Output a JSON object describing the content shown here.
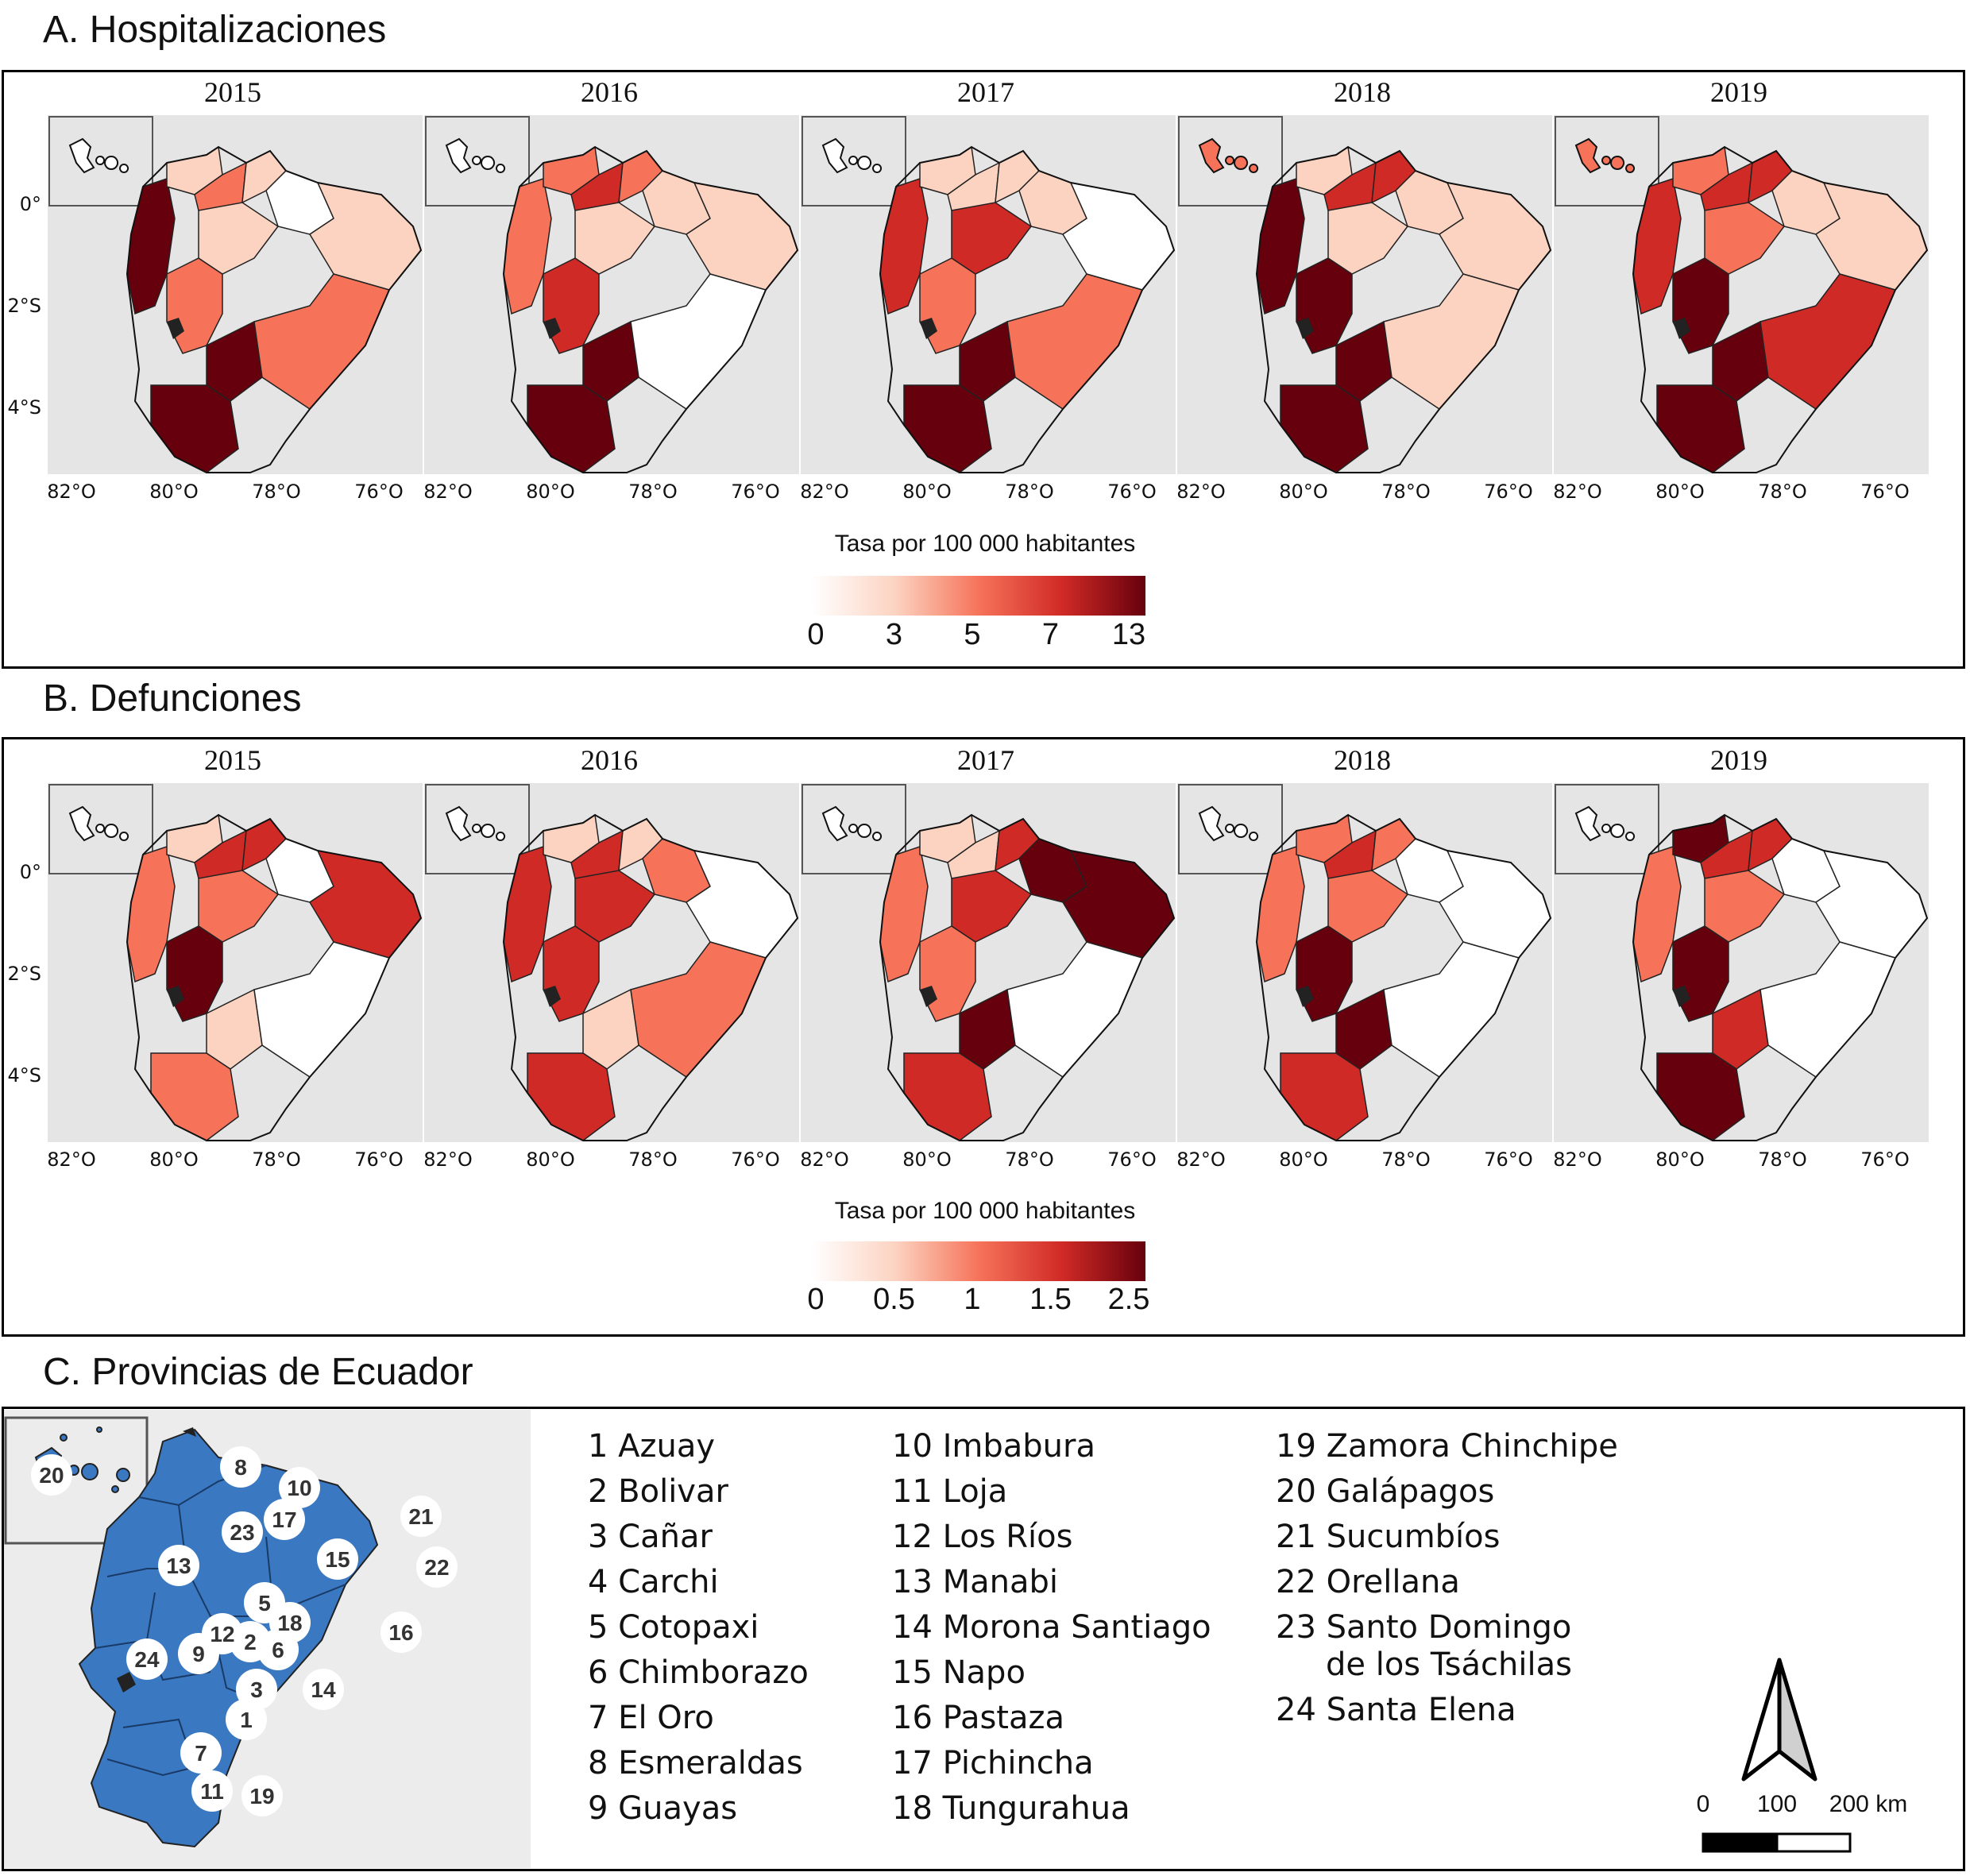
{
  "sections": {
    "hosp_title": "A. Hospitalizaciones",
    "def_title": "B. Defunciones",
    "prov_title": "C. Provincias de Ecuador"
  },
  "years": [
    "2015",
    "2016",
    "2017",
    "2018",
    "2019"
  ],
  "lat_ticks": [
    "0°",
    "2°S",
    "4°S"
  ],
  "lon_ticks": [
    "82°O",
    "80°O",
    "78°O",
    "76°O"
  ],
  "legend_hosp": {
    "title": "Tasa por 100 000 habitantes",
    "labels": [
      "0",
      "3",
      "5",
      "7",
      "13"
    ]
  },
  "legend_def": {
    "title": "Tasa por 100 000 habitantes",
    "labels": [
      "0",
      "0.5",
      "1",
      "1.5",
      "2.5"
    ]
  },
  "colors": {
    "scale": [
      "#ffffff",
      "#fcd3c1",
      "#f6735a",
      "#d02a26",
      "#67000d"
    ],
    "ocean_panel": "#e5e5e5",
    "province_fill": "#3a78c2",
    "province_panel": "#ececec"
  },
  "provinces": [
    "1 Azuay",
    "2 Bolivar",
    "3 Cañar",
    "4 Carchi",
    "5 Cotopaxi",
    "6 Chimborazo",
    "7 El Oro",
    "8 Esmeraldas",
    "9 Guayas",
    "10 Imbabura",
    "11 Loja",
    "12 Los Ríos",
    "13 Manabi",
    "14 Morona Santiago",
    "15 Napo",
    "16 Pastaza",
    "17 Pichincha",
    "18 Tungurahua",
    "19 Zamora Chinchipe",
    "20 Galápagos",
    "21 Sucumbíos",
    "22 Orellana",
    "23 Santo Domingo",
    "de los Tsáchilas",
    "24 Santa Elena"
  ],
  "province_numbers": [
    "1",
    "2",
    "3",
    "5",
    "6",
    "7",
    "8",
    "9",
    "10",
    "11",
    "12",
    "13",
    "14",
    "15",
    "16",
    "17",
    "18",
    "19",
    "20",
    "21",
    "22",
    "23",
    "24"
  ],
  "scale_bar": {
    "labels": [
      "0",
      "100",
      "200 km"
    ]
  },
  "map_fills": {
    "hosp": [
      [
        "#67000d",
        "#fcd3c1",
        "#f6735a",
        "#fcd3c1",
        "#ffffff",
        "#fcd3c1",
        "#f6735a",
        "#67000d",
        "#f6735a",
        "#fcd3c1",
        "#67000d"
      ],
      [
        "#f6735a",
        "#f6735a",
        "#d02a26",
        "#f6735a",
        "#fcd3c1",
        "#fcd3c1",
        "#d02a26",
        "#67000d",
        "#ffffff",
        "#fcd3c1",
        "#67000d"
      ],
      [
        "#d02a26",
        "#fcd3c1",
        "#fcd3c1",
        "#fcd3c1",
        "#fcd3c1",
        "#ffffff",
        "#f6735a",
        "#67000d",
        "#f6735a",
        "#d02a26",
        "#67000d"
      ],
      [
        "#67000d",
        "#fcd3c1",
        "#d02a26",
        "#d02a26",
        "#fcd3c1",
        "#fcd3c1",
        "#67000d",
        "#67000d",
        "#fcd3c1",
        "#fcd3c1",
        "#67000d"
      ],
      [
        "#d02a26",
        "#f6735a",
        "#d02a26",
        "#d02a26",
        "#fcd3c1",
        "#fcd3c1",
        "#67000d",
        "#67000d",
        "#d02a26",
        "#f6735a",
        "#67000d"
      ]
    ],
    "def": [
      [
        "#f6735a",
        "#fcd3c1",
        "#d02a26",
        "#d02a26",
        "#ffffff",
        "#d02a26",
        "#67000d",
        "#fcd3c1",
        "#ffffff",
        "#f6735a",
        "#f6735a"
      ],
      [
        "#d02a26",
        "#fcd3c1",
        "#d02a26",
        "#fcd3c1",
        "#f6735a",
        "#ffffff",
        "#d02a26",
        "#fcd3c1",
        "#f6735a",
        "#d02a26",
        "#d02a26"
      ],
      [
        "#f6735a",
        "#fcd3c1",
        "#fcd3c1",
        "#d02a26",
        "#67000d",
        "#67000d",
        "#f6735a",
        "#67000d",
        "#ffffff",
        "#d02a26",
        "#d02a26"
      ],
      [
        "#f6735a",
        "#f6735a",
        "#d02a26",
        "#f6735a",
        "#ffffff",
        "#ffffff",
        "#67000d",
        "#67000d",
        "#ffffff",
        "#f6735a",
        "#d02a26"
      ],
      [
        "#f6735a",
        "#67000d",
        "#d02a26",
        "#d02a26",
        "#ffffff",
        "#ffffff",
        "#67000d",
        "#d02a26",
        "#ffffff",
        "#f6735a",
        "#67000d"
      ]
    ],
    "galapagos_hosp": [
      "#ffffff",
      "#ffffff",
      "#ffffff",
      "#f6735a",
      "#f6735a"
    ]
  }
}
